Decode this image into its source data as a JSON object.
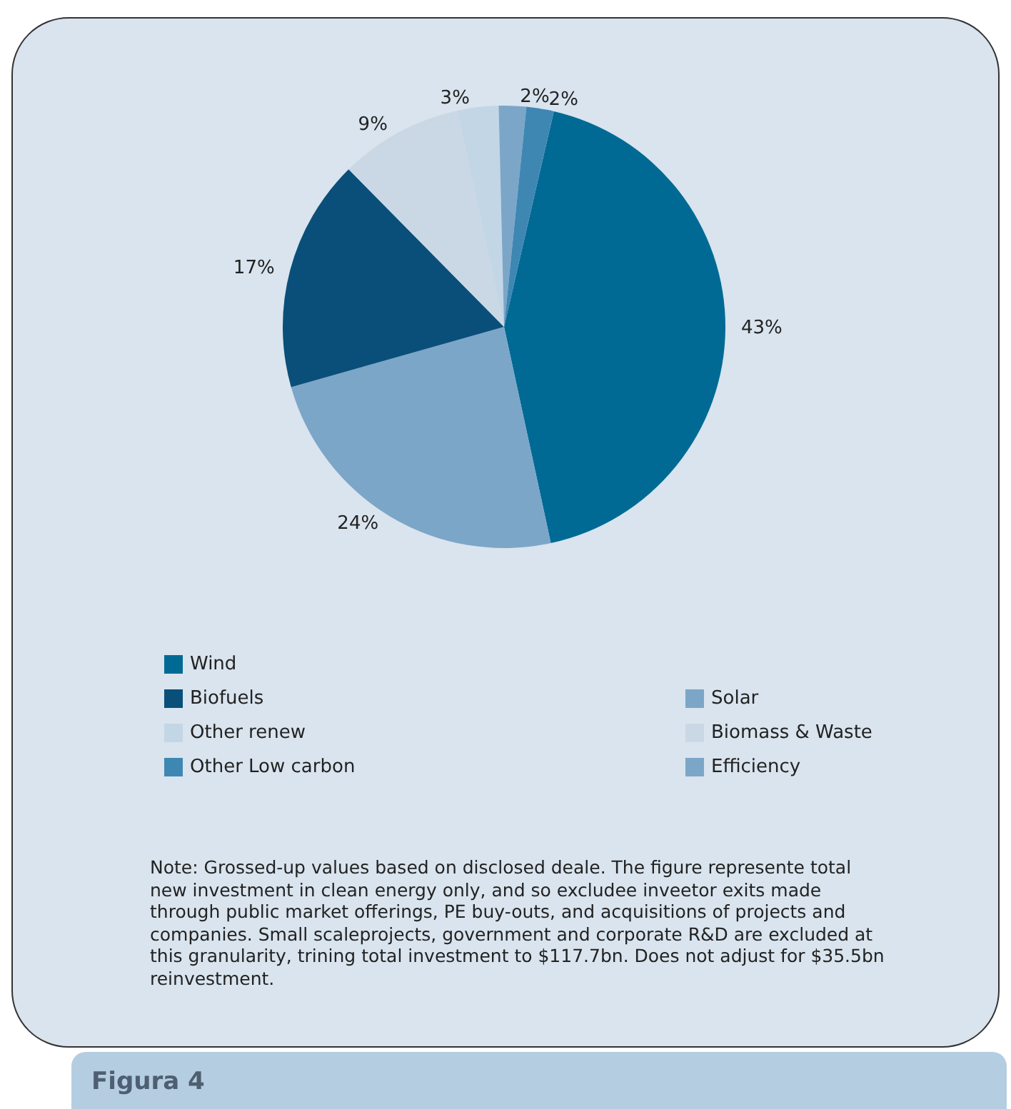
{
  "chart_data": {
    "type": "pie",
    "title": "Figura 4",
    "categories": [
      "Wind",
      "Solar",
      "Biofuels",
      "Biomass & Waste",
      "Other renew",
      "Efficiency",
      "Other Low carbon"
    ],
    "values": [
      43,
      24,
      17,
      9,
      3,
      2,
      2
    ],
    "colors": [
      "#006a94",
      "#7ca6c8",
      "#0a4f7a",
      "#cad8e6",
      "#c3d6e6",
      "#7ca6c8",
      "#3f87b3"
    ],
    "value_labels": [
      "43%",
      "24%",
      "17%",
      "9%",
      "3%",
      "2%",
      "2%"
    ],
    "legend": "bottom",
    "annotations": [
      "Note: Grossed-up values based on disclosed deale. The figure represente total new investment in clean energy only, and so excludee inveetor exits made through public market offerings, PE buy-outs, and acquisitions of projects and companies. Small scaleprojects, government and corporate R&D are excluded at this granularity, trining total investment to $117.7bn. Does not adjust for $35.5bn reinvestment."
    ]
  }
}
